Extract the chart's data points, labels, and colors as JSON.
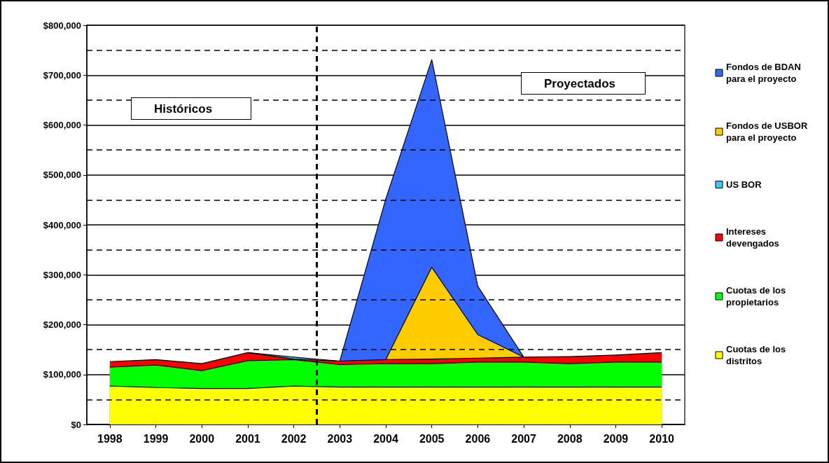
{
  "chart_data": {
    "type": "area",
    "stacked": true,
    "x": [
      1998,
      1999,
      2000,
      2001,
      2002,
      2003,
      2004,
      2005,
      2006,
      2007,
      2008,
      2009,
      2010
    ],
    "xlim": [
      1997.5,
      2010.5
    ],
    "xticks": [
      1998,
      1999,
      2000,
      2001,
      2002,
      2003,
      2004,
      2005,
      2006,
      2007,
      2008,
      2009,
      2010
    ],
    "ylim": [
      0,
      800000
    ],
    "yticks": [
      {
        "value": 0,
        "label": "$0"
      },
      {
        "value": 100000,
        "label": "$100,000"
      },
      {
        "value": 200000,
        "label": "$200,000"
      },
      {
        "value": 300000,
        "label": "$300,000"
      },
      {
        "value": 400000,
        "label": "$400,000"
      },
      {
        "value": 500000,
        "label": "$500,000"
      },
      {
        "value": 600000,
        "label": "$600,000"
      },
      {
        "value": 700000,
        "label": "$700,000"
      },
      {
        "value": 800000,
        "label": "$800,000"
      }
    ],
    "grid": "y",
    "legend": "right",
    "series": [
      {
        "name": "Cuotas de los distritos",
        "color": "#ffff00",
        "values": [
          77000,
          74000,
          72000,
          72000,
          77000,
          75000,
          75000,
          75000,
          75000,
          75000,
          75000,
          75000,
          75000
        ]
      },
      {
        "name": "Cuotas de los propietarios",
        "color": "#00ff00",
        "values": [
          38000,
          45000,
          36000,
          56000,
          53000,
          45000,
          47000,
          47000,
          50000,
          50000,
          47000,
          50000,
          50000
        ]
      },
      {
        "name": "Intereses devengados",
        "color": "#ff0000",
        "values": [
          11000,
          11000,
          14000,
          16000,
          1000,
          7000,
          8000,
          9000,
          8000,
          10000,
          14000,
          14000,
          19000
        ]
      },
      {
        "name": "US BOR",
        "color": "#33ccff",
        "values": [
          null,
          null,
          null,
          0,
          4000,
          0,
          null,
          null,
          null,
          null,
          null,
          null,
          null
        ]
      },
      {
        "name": "Fondos de USBOR para el proyecto",
        "color": "#ffcc00",
        "values": [
          null,
          null,
          null,
          null,
          null,
          null,
          0,
          184000,
          47000,
          0,
          null,
          null,
          null
        ]
      },
      {
        "name": "Fondos de BDAN para el proyecto",
        "color": "#3366ff",
        "values": [
          null,
          null,
          null,
          null,
          null,
          0,
          322000,
          416000,
          97000,
          0,
          null,
          null,
          null
        ]
      }
    ],
    "ref_lines": [
      {
        "axis": "x",
        "value": 2002.5,
        "line_style": "dashed",
        "color": "#000000"
      },
      {
        "axis": "y",
        "value": 50000,
        "line_style": "dashed",
        "color": "#000000"
      },
      {
        "axis": "y",
        "value": 150000,
        "line_style": "dashed",
        "color": "#000000"
      },
      {
        "axis": "y",
        "value": 250000,
        "line_style": "dashed",
        "color": "#000000"
      },
      {
        "axis": "y",
        "value": 350000,
        "line_style": "dashed",
        "color": "#000000"
      },
      {
        "axis": "y",
        "value": 450000,
        "line_style": "dashed",
        "color": "#000000"
      },
      {
        "axis": "y",
        "value": 550000,
        "line_style": "dashed",
        "color": "#000000"
      },
      {
        "axis": "y",
        "value": 650000,
        "line_style": "dashed",
        "color": "#000000"
      },
      {
        "axis": "y",
        "value": 750000,
        "line_style": "dashed",
        "color": "#000000"
      }
    ],
    "annotations": [
      "Históricos",
      "Proyectados"
    ]
  }
}
